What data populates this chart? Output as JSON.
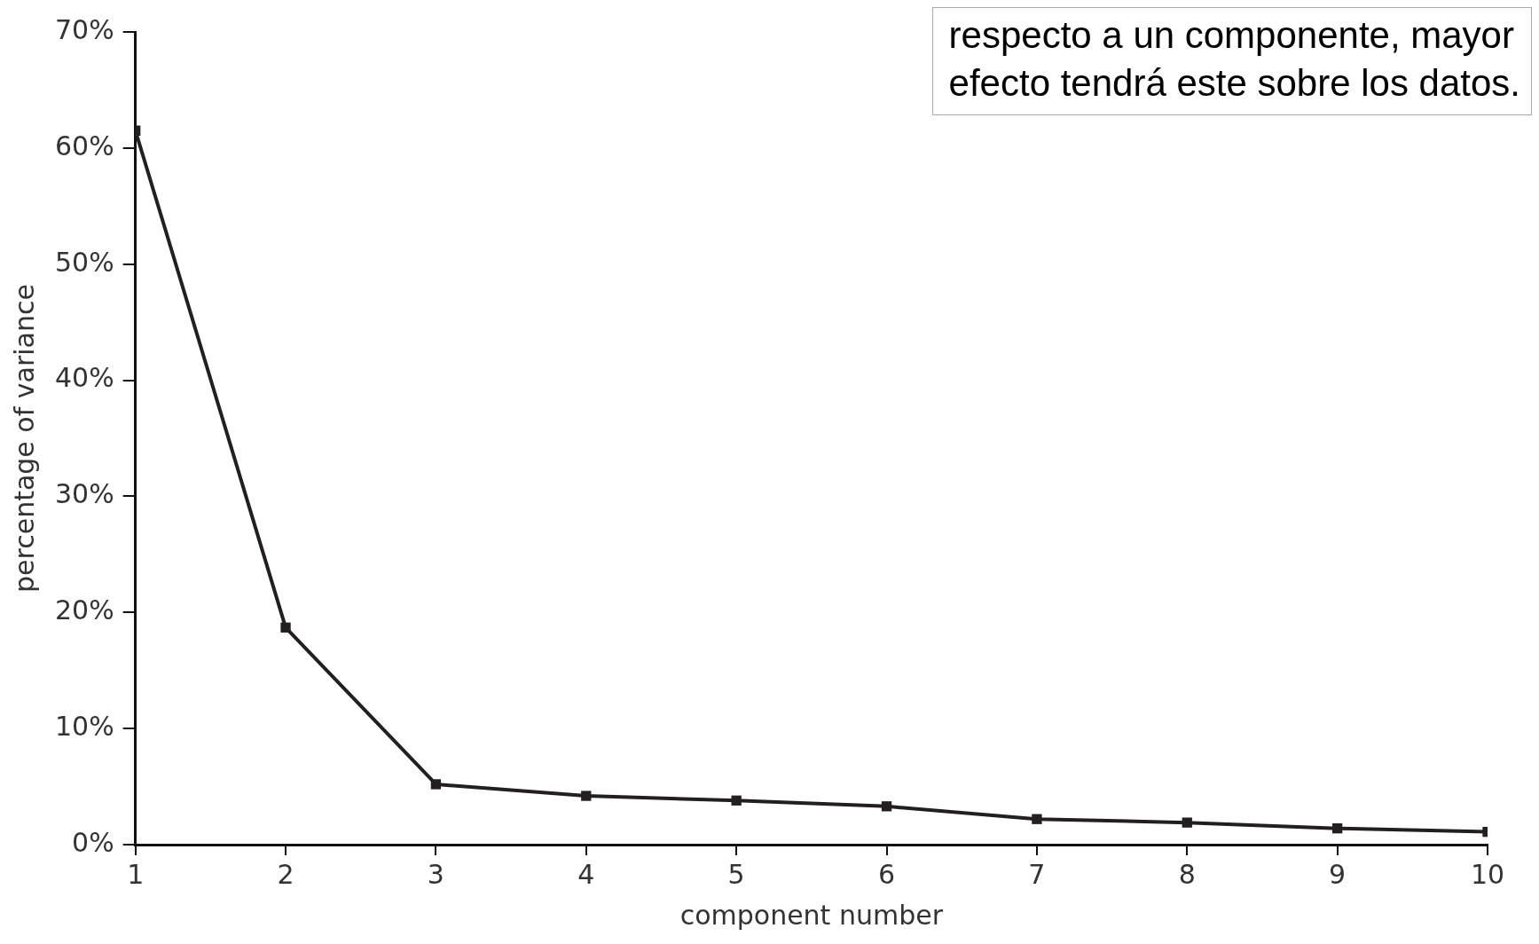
{
  "chart_data": {
    "type": "line",
    "xlabel": "component number",
    "ylabel": "percentage of variance",
    "annotations": [
      "respecto a un componente, mayor\nefecto tendrá este sobre los datos."
    ],
    "x": [
      1,
      2,
      3,
      4,
      5,
      6,
      7,
      8,
      9,
      10
    ],
    "series": [
      {
        "color": "#231f20",
        "values": [
          61.5,
          18.7,
          5.2,
          4.2,
          3.8,
          3.3,
          2.2,
          1.9,
          1.4,
          1.1
        ]
      }
    ],
    "xlim": [
      1,
      10
    ],
    "xticks": [
      1,
      2,
      3,
      4,
      5,
      6,
      7,
      8,
      9,
      10
    ],
    "ylim": [
      0,
      70
    ],
    "yticks": [
      {
        "value": 0,
        "label": "0%"
      },
      {
        "value": 10,
        "label": "10%"
      },
      {
        "value": 20,
        "label": "20%"
      },
      {
        "value": 30,
        "label": "30%"
      },
      {
        "value": 40,
        "label": "40%"
      },
      {
        "value": 50,
        "label": "50%"
      },
      {
        "value": 60,
        "label": "60%"
      },
      {
        "value": 70,
        "label": "70%"
      }
    ],
    "grid": false,
    "legend": false,
    "marker": "square",
    "line_style": "solid"
  }
}
